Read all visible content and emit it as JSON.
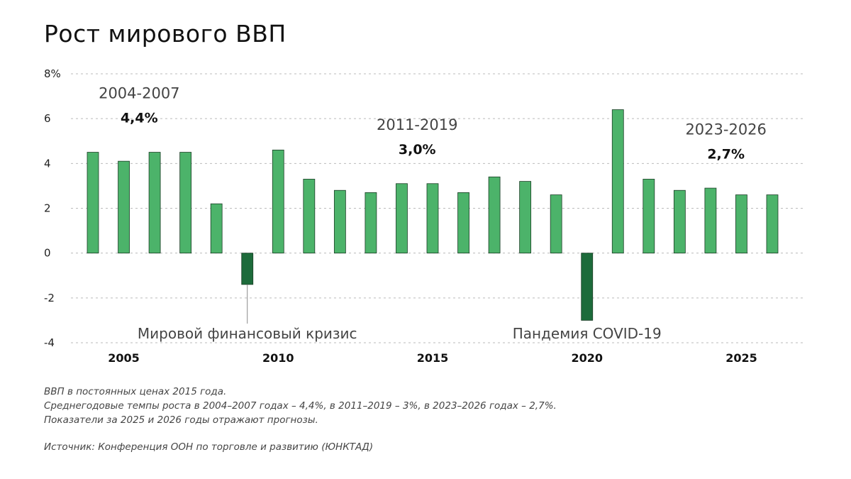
{
  "title": "Рост мирового ВВП",
  "chart_data": {
    "type": "bar",
    "title": "Рост мирового ВВП",
    "unit": "%",
    "x": [
      2004,
      2005,
      2006,
      2007,
      2008,
      2009,
      2010,
      2011,
      2012,
      2013,
      2014,
      2015,
      2016,
      2017,
      2018,
      2019,
      2020,
      2021,
      2022,
      2023,
      2024,
      2025,
      2026
    ],
    "values": [
      4.5,
      4.1,
      4.5,
      4.5,
      2.2,
      -1.4,
      4.6,
      3.3,
      2.8,
      2.7,
      3.1,
      3.1,
      2.7,
      3.4,
      3.2,
      2.6,
      -3.0,
      6.4,
      3.3,
      2.8,
      2.9,
      2.6,
      2.6
    ],
    "highlight_years": [
      2009,
      2020
    ],
    "ylim": [
      -4,
      8
    ],
    "yticks": [
      8,
      6,
      4,
      2,
      0,
      -2,
      -4
    ],
    "ytick_labels": [
      "8%",
      "6",
      "4",
      "2",
      "0",
      "-2",
      "-4"
    ],
    "xticks": [
      2005,
      2010,
      2015,
      2020,
      2025
    ],
    "xtick_labels": [
      "2005",
      "2010",
      "2015",
      "2020",
      "2025"
    ],
    "grid": true,
    "colors": {
      "bar": "#4cb36a",
      "bar_highlight": "#1d6b3b",
      "bar_stroke": "#1a3d25",
      "grid": "#bbbbbb"
    },
    "annotations": [
      {
        "period": "2004-2007",
        "value": "4,4%",
        "x_center": 2005.5,
        "y_top": 6.9
      },
      {
        "period": "2011-2019",
        "value": "3,0%",
        "x_center": 2014.5,
        "y_top": 5.5
      },
      {
        "period": "2023-2026",
        "value": "2,7%",
        "x_center": 2024.5,
        "y_top": 5.3
      }
    ],
    "callouts": [
      {
        "text": "Мировой финансовый кризис",
        "year": 2009
      },
      {
        "text": "Пандемия COVID-19",
        "year": 2020
      }
    ]
  },
  "notes": [
    "ВВП в постоянных ценах 2015 года.",
    "Среднегодовые темпы роста в 2004–2007 годах – 4,4%, в 2011–2019 – 3%, в 2023–2026 годах – 2,7%.",
    "Показатели за 2025 и 2026 годы отражают прогнозы."
  ],
  "source": "Источник: Конференция ООН по торговле и развитию (ЮНКТАД)"
}
